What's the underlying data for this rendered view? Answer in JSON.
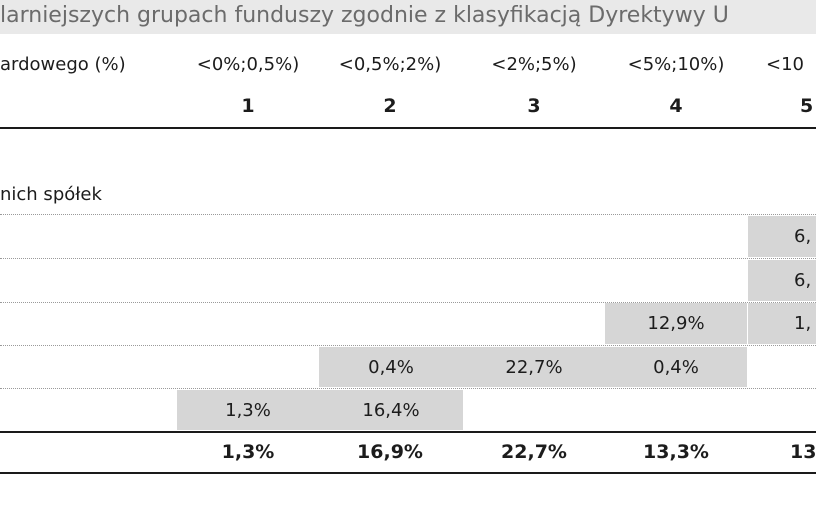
{
  "title": "larniejszych grupach funduszy zgodnie z klasyfikacją Dyrektywy U",
  "header": {
    "first_label": "ardowego (%)",
    "ranges": [
      "<0%;0,5%)",
      "<0,5%;2%)",
      "<2%;5%)",
      "<5%;10%)",
      "<10"
    ],
    "classes": [
      "1",
      "2",
      "3",
      "4",
      "5"
    ]
  },
  "section_label": "nich spółek",
  "rows": [
    [
      "",
      "",
      "",
      "",
      "6,"
    ],
    [
      "",
      "",
      "",
      "",
      "6,"
    ],
    [
      "",
      "",
      "",
      "12,9%",
      "1,"
    ],
    [
      "",
      "0,4%",
      "22,7%",
      "0,4%",
      ""
    ],
    [
      "1,3%",
      "16,4%",
      "",
      "",
      ""
    ]
  ],
  "totals": [
    "1,3%",
    "16,9%",
    "22,7%",
    "13,3%",
    "13"
  ]
}
